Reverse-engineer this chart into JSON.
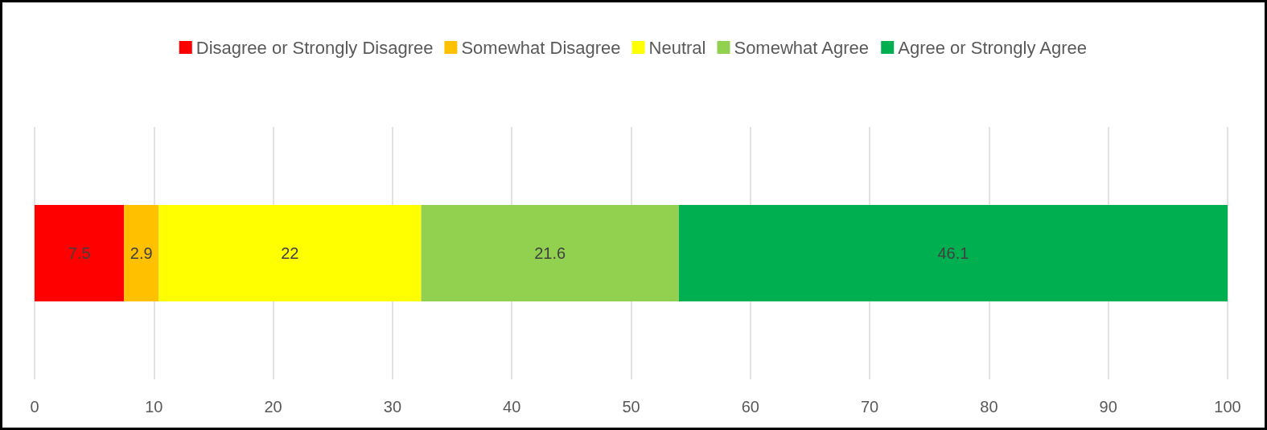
{
  "chart_data": {
    "type": "bar",
    "orientation": "horizontal",
    "stacked": true,
    "categories": [
      null
    ],
    "series": [
      {
        "name": "Disagree or Strongly Disagree",
        "color": "#ff0000",
        "values": [
          7.5
        ]
      },
      {
        "name": "Somewhat Disagree",
        "color": "#ffc000",
        "values": [
          2.9
        ]
      },
      {
        "name": "Neutral",
        "color": "#ffff00",
        "values": [
          22
        ]
      },
      {
        "name": "Somewhat Agree",
        "color": "#92d050",
        "values": [
          21.6
        ]
      },
      {
        "name": "Agree or Strongly Agree",
        "color": "#00b050",
        "values": [
          46.1
        ]
      }
    ],
    "xlim": [
      0,
      100
    ],
    "xticks": [
      0,
      10,
      20,
      30,
      40,
      50,
      60,
      70,
      80,
      90,
      100
    ],
    "grid": "x",
    "legend": "top",
    "data_labels": true,
    "tick_labels": "x"
  }
}
